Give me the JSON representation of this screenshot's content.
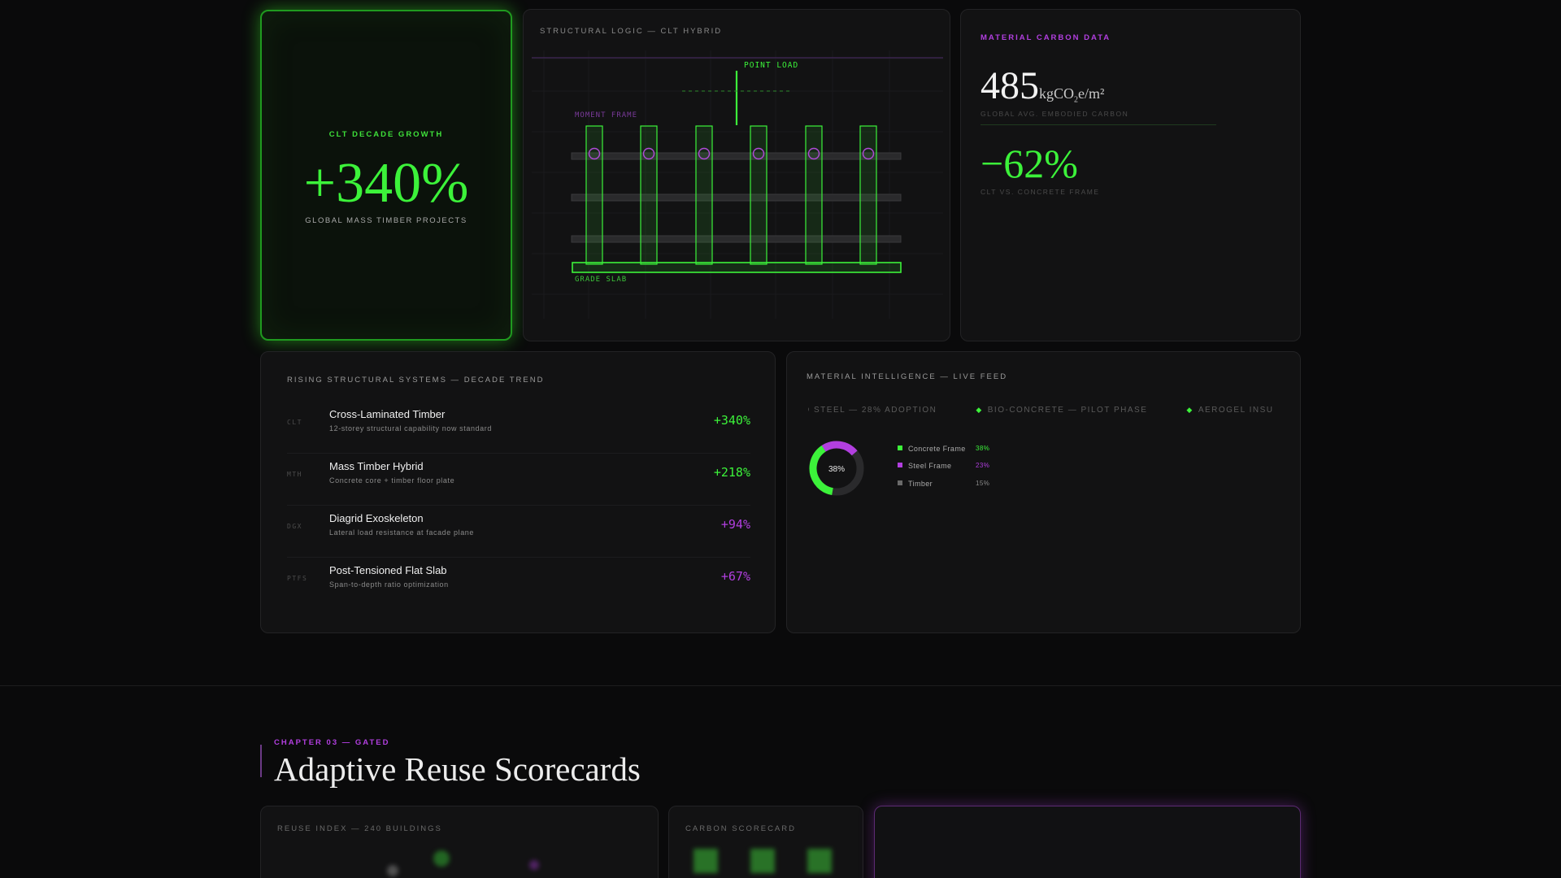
{
  "hero": {
    "label": "CLT DECADE GROWTH",
    "value": "+340%",
    "sub": "GLOBAL MASS TIMBER PROJECTS"
  },
  "structural": {
    "title": "STRUCTURAL LOGIC — CLT HYBRID",
    "point_load": "POINT LOAD",
    "moment_frame": "MOMENT FRAME",
    "grade_slab": "GRADE SLAB"
  },
  "carbon": {
    "title": "MATERIAL CARBON DATA",
    "value1": "485",
    "unit_pre": "kgCO",
    "unit_sub": "2",
    "unit_post": "e/m²",
    "label1": "GLOBAL AVG. EMBODIED CARBON",
    "value2": "−62%",
    "label2": "CLT VS. CONCRETE FRAME"
  },
  "trend": {
    "title": "RISING STRUCTURAL SYSTEMS — DECADE TREND",
    "rows": [
      {
        "code": "CLT",
        "name": "Cross-Laminated Timber",
        "desc": "12-storey structural capability now standard",
        "pct": "+340%"
      },
      {
        "code": "MTH",
        "name": "Mass Timber Hybrid",
        "desc": "Concrete core + timber floor plate",
        "pct": "+218%"
      },
      {
        "code": "DGX",
        "name": "Diagrid Exoskeleton",
        "desc": "Lateral load resistance at facade plane",
        "pct": "+94%"
      },
      {
        "code": "PTFS",
        "name": "Post-Tensioned Flat Slab",
        "desc": "Span-to-depth ratio optimization",
        "pct": "+67%"
      }
    ]
  },
  "feed": {
    "title": "MATERIAL INTELLIGENCE — LIVE FEED",
    "ticker": [
      "D STEEL — 28% ADOPTION",
      "BIO-CONCRETE — PILOT PHASE",
      "AEROGEL INSU"
    ],
    "donut_center": "38%",
    "legend": [
      {
        "label": "Concrete Frame",
        "pct": "38%",
        "color": "#3cf23a"
      },
      {
        "label": "Steel Frame",
        "pct": "23%",
        "color": "#b23fe0"
      },
      {
        "label": "Timber",
        "pct": "15%",
        "color": "#6a6a6a"
      }
    ]
  },
  "chapter": {
    "eyebrow": "CHAPTER 03 — GATED",
    "title": "Adaptive Reuse Scorecards"
  },
  "reuse": {
    "title": "REUSE INDEX — 240 BUILDINGS"
  },
  "score": {
    "title": "CARBON SCORECARD"
  },
  "colors": {
    "accent_green": "#3cf23a",
    "accent_purple": "#b23fe0",
    "bg": "#0a0a0b"
  }
}
